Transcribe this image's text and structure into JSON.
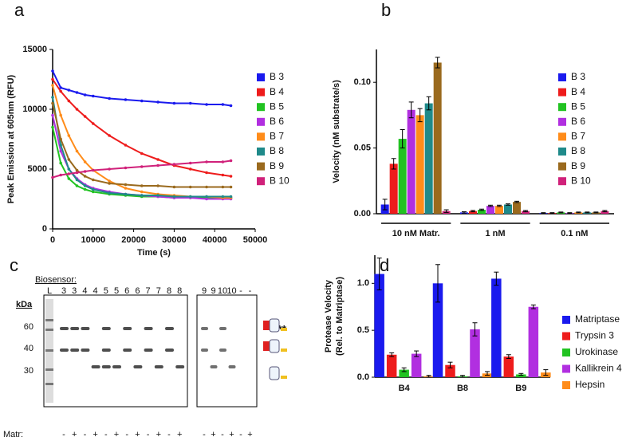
{
  "chart_data": [
    {
      "type": "line",
      "panel": "a",
      "x_label": "Time (s)",
      "y_label": "Peak Emission at 605nm (RFU)",
      "x": [
        0,
        2000,
        4000,
        6000,
        8000,
        10000,
        14000,
        18000,
        22000,
        26000,
        30000,
        34000,
        38000,
        42000,
        44000
      ],
      "xlim": [
        0,
        50000
      ],
      "xticks": [
        0,
        10000,
        20000,
        30000,
        40000,
        50000
      ],
      "ylim": [
        0,
        15000
      ],
      "yticks": [
        0,
        5000,
        10000,
        15000
      ],
      "series": [
        {
          "name": "B 3",
          "color": "#1a1aee",
          "values": [
            13200,
            11800,
            11600,
            11400,
            11200,
            11100,
            10900,
            10800,
            10700,
            10600,
            10500,
            10500,
            10400,
            10400,
            10300
          ]
        },
        {
          "name": "B 4",
          "color": "#ee1c1c",
          "values": [
            12500,
            11500,
            10700,
            10000,
            9400,
            8800,
            7800,
            7000,
            6300,
            5800,
            5300,
            5000,
            4700,
            4500,
            4400
          ]
        },
        {
          "name": "B 5",
          "color": "#22c322",
          "values": [
            8500,
            5500,
            4200,
            3600,
            3300,
            3100,
            2900,
            2800,
            2700,
            2700,
            2600,
            2600,
            2600,
            2600,
            2600
          ]
        },
        {
          "name": "B 6",
          "color": "#b12fe0",
          "values": [
            9500,
            6500,
            5000,
            4200,
            3700,
            3400,
            3100,
            2900,
            2800,
            2700,
            2600,
            2600,
            2500,
            2500,
            2500
          ]
        },
        {
          "name": "B 7",
          "color": "#ff8c1a",
          "values": [
            12000,
            9500,
            7800,
            6500,
            5600,
            4900,
            4000,
            3400,
            3100,
            2900,
            2800,
            2700,
            2700,
            2600,
            2600
          ]
        },
        {
          "name": "B 8",
          "color": "#1f8a8a",
          "values": [
            11000,
            7000,
            5000,
            4100,
            3600,
            3300,
            3000,
            2900,
            2800,
            2800,
            2700,
            2700,
            2700,
            2700,
            2700
          ]
        },
        {
          "name": "B 9",
          "color": "#9a6a1e",
          "values": [
            10500,
            7500,
            5800,
            4900,
            4400,
            4100,
            3800,
            3700,
            3600,
            3600,
            3500,
            3500,
            3500,
            3500,
            3500
          ]
        },
        {
          "name": "B 10",
          "color": "#d0217a",
          "values": [
            4300,
            4500,
            4600,
            4700,
            4800,
            4900,
            5000,
            5100,
            5200,
            5300,
            5400,
            5500,
            5600,
            5600,
            5700
          ]
        }
      ]
    },
    {
      "type": "bar",
      "panel": "b",
      "y_label": [
        "Velocity (nM substrate/s)"
      ],
      "categories": [
        "10 nM Matr.",
        "1 nM",
        "0.1 nM"
      ],
      "ylim": [
        0,
        0.125
      ],
      "yticks": [
        {
          "value": 0,
          "label": "0.00"
        },
        {
          "value": 0.05,
          "label": "0.05"
        },
        {
          "value": 0.1,
          "label": "0.10"
        }
      ],
      "series": [
        {
          "name": "B 3",
          "color": "#1a1aee",
          "values": [
            0.007,
            0.001,
            0.0005
          ],
          "errors": [
            0.004,
            0.0005,
            0.0003
          ]
        },
        {
          "name": "B 4",
          "color": "#ee1c1c",
          "values": [
            0.038,
            0.002,
            0.0005
          ],
          "errors": [
            0.004,
            0.0005,
            0.0003
          ]
        },
        {
          "name": "B 5",
          "color": "#22c322",
          "values": [
            0.057,
            0.003,
            0.001
          ],
          "errors": [
            0.007,
            0.0005,
            0.0003
          ]
        },
        {
          "name": "B 6",
          "color": "#b12fe0",
          "values": [
            0.079,
            0.006,
            0.0005
          ],
          "errors": [
            0.006,
            0.0005,
            0.0003
          ]
        },
        {
          "name": "B 7",
          "color": "#ff8c1a",
          "values": [
            0.075,
            0.006,
            0.001
          ],
          "errors": [
            0.005,
            0.0005,
            0.0003
          ]
        },
        {
          "name": "B 8",
          "color": "#1f8a8a",
          "values": [
            0.084,
            0.007,
            0.001
          ],
          "errors": [
            0.005,
            0.0005,
            0.0003
          ]
        },
        {
          "name": "B 9",
          "color": "#9a6a1e",
          "values": [
            0.115,
            0.009,
            0.001
          ],
          "errors": [
            0.004,
            0.0005,
            0.0003
          ]
        },
        {
          "name": "B 10",
          "color": "#d0217a",
          "values": [
            0.002,
            0.002,
            0.002
          ],
          "errors": [
            0.001,
            0.0005,
            0.0005
          ]
        }
      ]
    },
    {
      "type": "bar",
      "panel": "d",
      "y_label": [
        "Protease Velocity",
        "(Rel. to Matriptase)"
      ],
      "categories": [
        "B4",
        "B8",
        "B9"
      ],
      "ylim": [
        0,
        1.3
      ],
      "yticks": [
        {
          "value": 0,
          "label": "0.0"
        },
        {
          "value": 0.5,
          "label": "0.5"
        },
        {
          "value": 1,
          "label": "1.0"
        }
      ],
      "series": [
        {
          "name": "Matriptase",
          "color": "#1a1aee",
          "values": [
            1.1,
            1.0,
            1.05
          ],
          "errors": [
            0.17,
            0.2,
            0.07
          ]
        },
        {
          "name": "Trypsin 3",
          "color": "#ee1c1c",
          "values": [
            0.24,
            0.13,
            0.22
          ],
          "errors": [
            0.02,
            0.03,
            0.02
          ]
        },
        {
          "name": "Urokinase",
          "color": "#22c322",
          "values": [
            0.08,
            0.01,
            0.03
          ],
          "errors": [
            0.02,
            0.01,
            0.01
          ]
        },
        {
          "name": "Kallikrein 4",
          "color": "#b12fe0",
          "values": [
            0.25,
            0.51,
            0.75
          ],
          "errors": [
            0.03,
            0.07,
            0.02
          ]
        },
        {
          "name": "Hepsin",
          "color": "#ff8c1a",
          "values": [
            0.01,
            0.04,
            0.05
          ],
          "errors": [
            0.01,
            0.02,
            0.03
          ]
        }
      ]
    }
  ],
  "blot": {
    "panel": "c",
    "header": "Biosensor:",
    "kda_label": "kDa",
    "markers": [
      "60",
      "40",
      "30"
    ],
    "ladder_label": "L",
    "lanes_left": [
      "3",
      "3",
      "4",
      "4",
      "5",
      "5",
      "6",
      "6",
      "7",
      "7",
      "8",
      "8"
    ],
    "lanes_right": [
      "9",
      "9",
      "10",
      "10",
      "-",
      "-"
    ],
    "matr_label": "Matr:",
    "matr_left": [
      "-",
      "+",
      "-",
      "+",
      "-",
      "+",
      "-",
      "+",
      "-",
      "+",
      "-",
      "+"
    ],
    "matr_right": [
      "-",
      "+",
      "-",
      "+",
      "-",
      "+"
    ],
    "annotation": "**"
  }
}
